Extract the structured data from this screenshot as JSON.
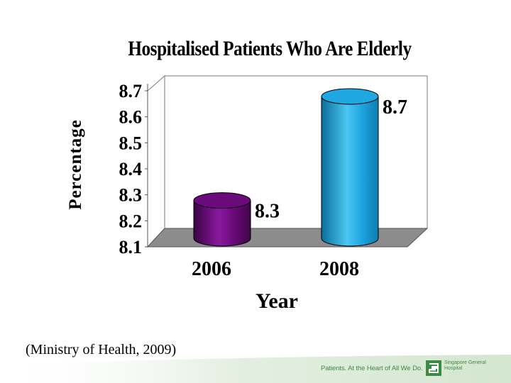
{
  "chart_data": {
    "type": "bar",
    "style": "3d-cylinder",
    "title": "Hospitalised Patients Who Are Elderly",
    "xlabel": "Year",
    "ylabel": "Percentage",
    "categories": [
      "2006",
      "2008"
    ],
    "values": [
      8.3,
      8.7
    ],
    "data_labels": [
      "8.3",
      "8.7"
    ],
    "y_ticks": [
      "8.1",
      "8.2",
      "8.3",
      "8.4",
      "8.5",
      "8.6",
      "8.7"
    ],
    "ylim": [
      8.1,
      8.7
    ],
    "grid": false,
    "legend": "none",
    "colors": [
      "#6b0a7a",
      "#1ea7e0"
    ]
  },
  "citation": "(Ministry of Health, 2009)",
  "footer": {
    "tagline": "Patients. At the Heart of All We Do.",
    "logo_text": "Singapore General Hospital",
    "brand_color": "#3e8a43"
  }
}
